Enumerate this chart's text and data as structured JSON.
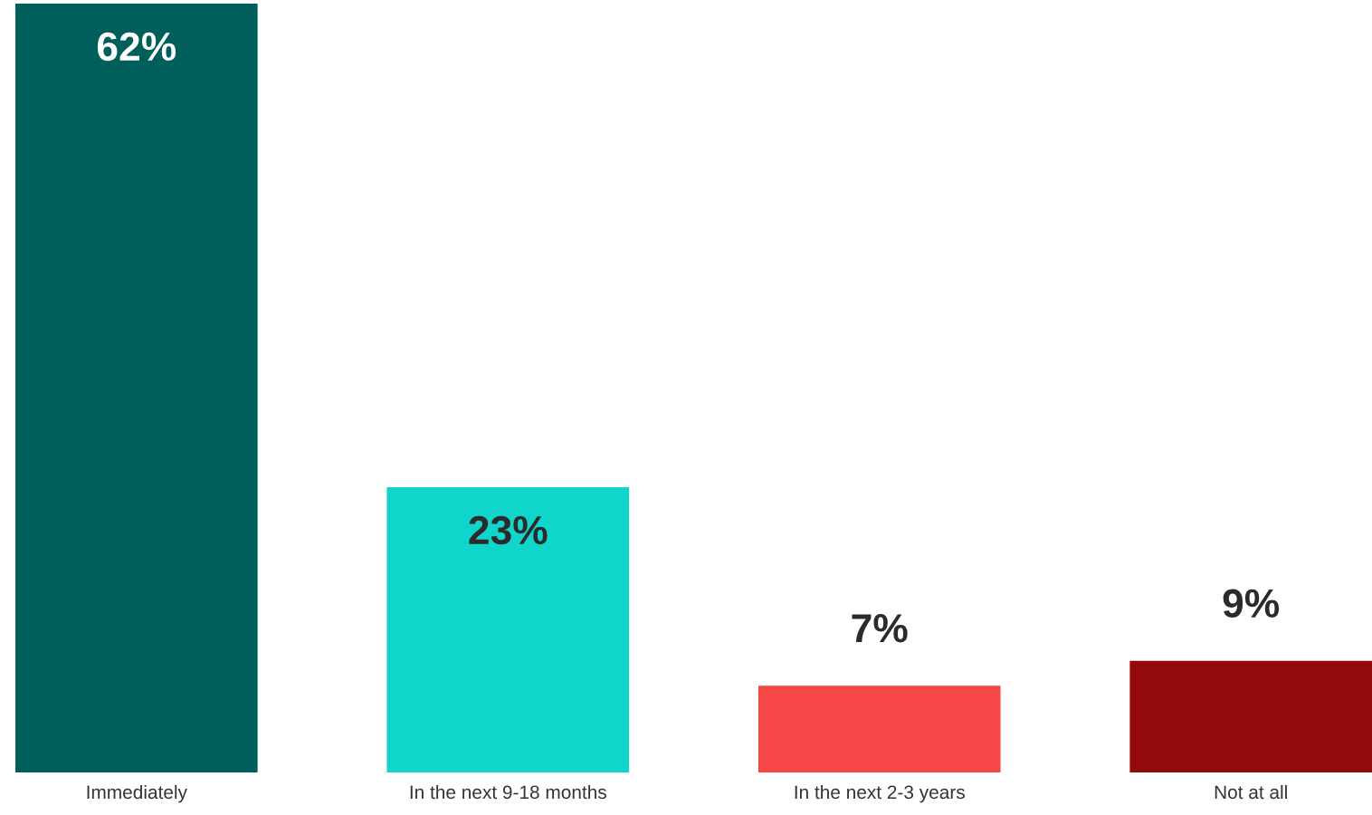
{
  "chart_data": {
    "type": "bar",
    "categories": [
      "Immediately",
      "In the next 9-18 months",
      "In the next 2-3 years",
      "Not at all"
    ],
    "values": [
      62,
      23,
      7,
      9
    ],
    "colors": [
      "#005f5b",
      "#10d5cb",
      "#f54745",
      "#930a0a"
    ],
    "value_labels": [
      "62%",
      "23%",
      "7%",
      "9%"
    ],
    "grid": false,
    "legend": false
  }
}
